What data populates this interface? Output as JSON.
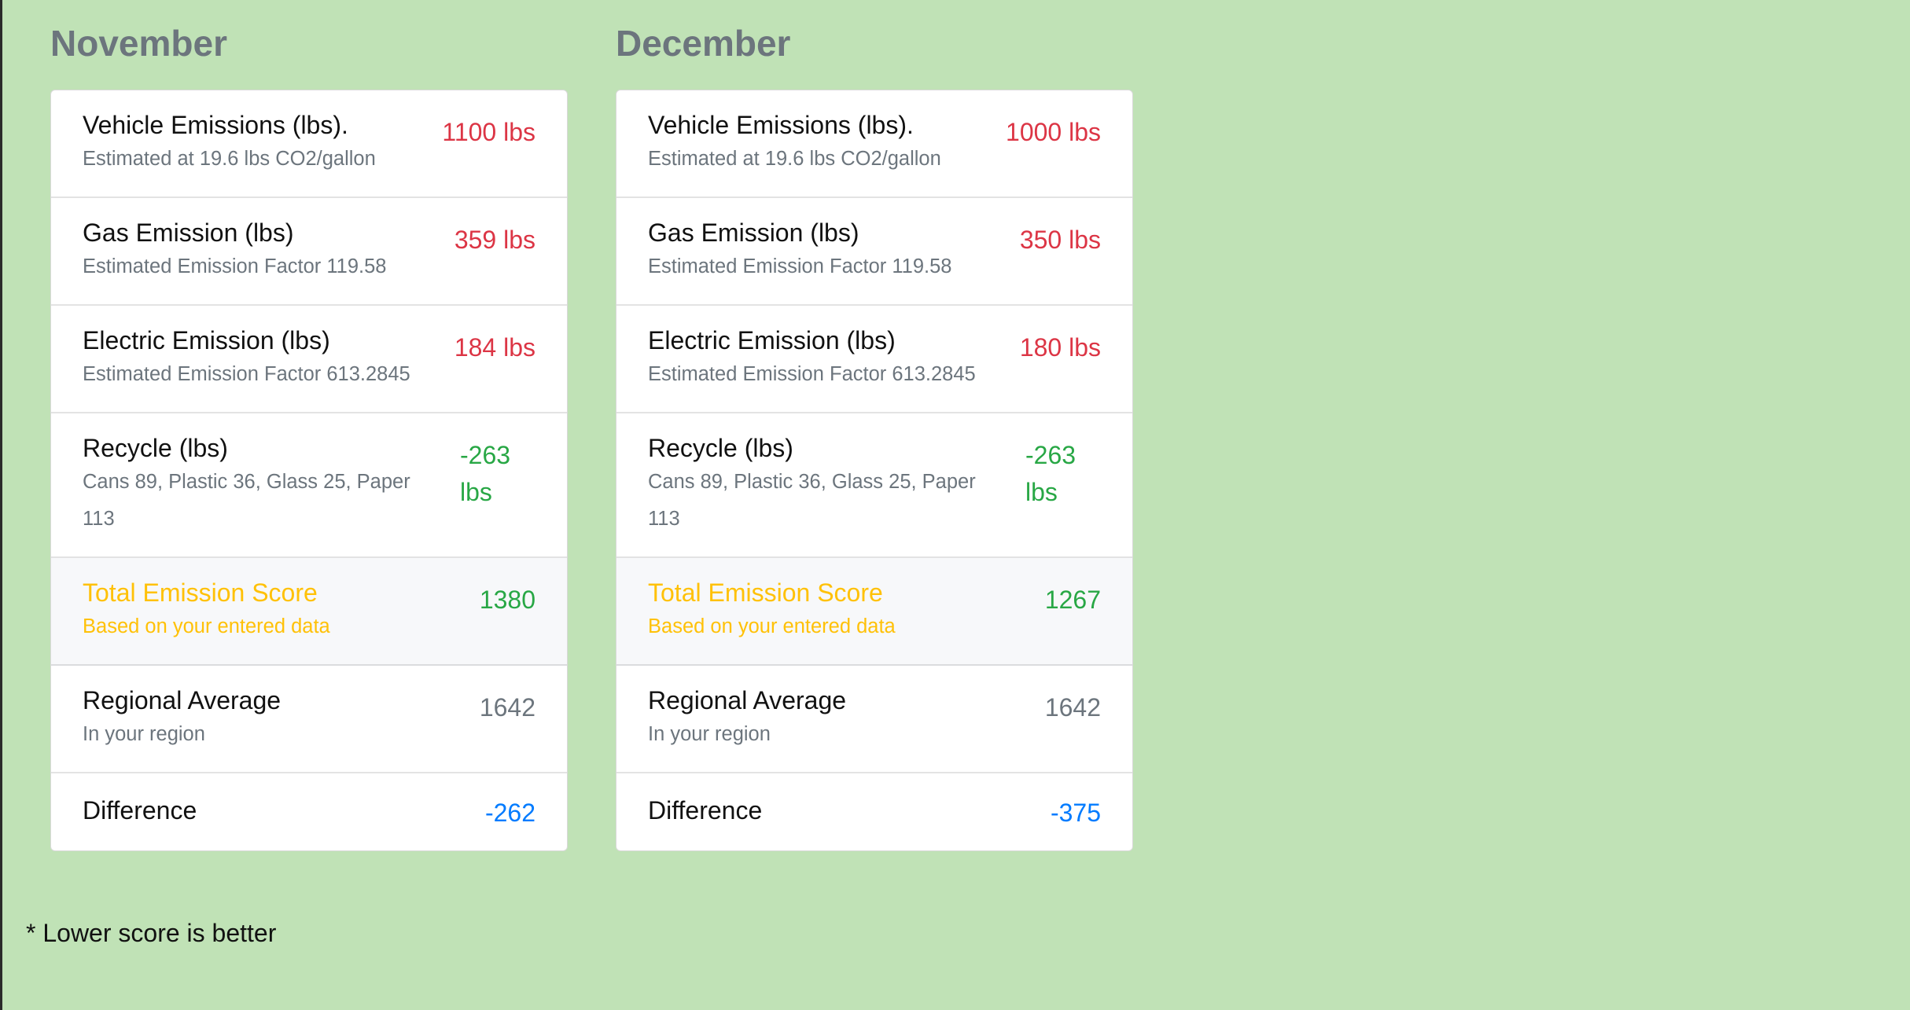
{
  "months": [
    {
      "name": "November",
      "vehicle": {
        "title": "Vehicle Emissions (lbs).",
        "sub": "Estimated at 19.6 lbs CO2/gallon",
        "value": "1100 lbs"
      },
      "gas": {
        "title": "Gas Emission (lbs)",
        "sub": "Estimated Emission Factor 119.58",
        "value": "359 lbs"
      },
      "electric": {
        "title": "Electric Emission (lbs)",
        "sub": "Estimated Emission Factor 613.2845",
        "value": "184 lbs"
      },
      "recycle": {
        "title": "Recycle (lbs)",
        "sub": "Cans 89, Plastic 36, Glass 25, Paper 113",
        "value": "-263 lbs"
      },
      "total": {
        "title": "Total Emission Score",
        "sub": "Based on your entered data",
        "value": "1380"
      },
      "regional": {
        "title": "Regional Average",
        "sub": "In your region",
        "value": "1642"
      },
      "difference": {
        "title": "Difference",
        "value": "-262"
      }
    },
    {
      "name": "December",
      "vehicle": {
        "title": "Vehicle Emissions (lbs).",
        "sub": "Estimated at 19.6 lbs CO2/gallon",
        "value": "1000 lbs"
      },
      "gas": {
        "title": "Gas Emission (lbs)",
        "sub": "Estimated Emission Factor 119.58",
        "value": "350 lbs"
      },
      "electric": {
        "title": "Electric Emission (lbs)",
        "sub": "Estimated Emission Factor 613.2845",
        "value": "180 lbs"
      },
      "recycle": {
        "title": "Recycle (lbs)",
        "sub": "Cans 89, Plastic 36, Glass 25, Paper 113",
        "value": "-263 lbs"
      },
      "total": {
        "title": "Total Emission Score",
        "sub": "Based on your entered data",
        "value": "1267"
      },
      "regional": {
        "title": "Regional Average",
        "sub": "In your region",
        "value": "1642"
      },
      "difference": {
        "title": "Difference",
        "value": "-375"
      }
    }
  ],
  "footnote": "* Lower score is better",
  "colors": {
    "background": "#c0e2b6",
    "emission_value": "#dc3545",
    "reduction_value": "#28a745",
    "total_label": "#ffc107",
    "difference_value": "#007bff"
  }
}
